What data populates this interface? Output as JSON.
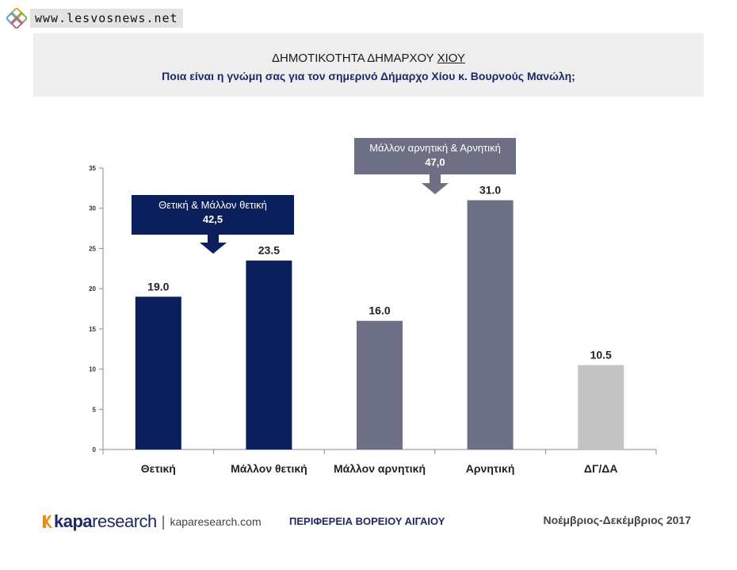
{
  "site": {
    "url": "www.lesvosnews.net"
  },
  "header": {
    "title_prefix": "ΔΗΜΟΤΙΚΟΤΗΤΑ ΔΗΜΑΡΧΟΥ",
    "title_place": "ΧΙΟΥ",
    "subtitle": "Ποια είναι η γνώμη σας για τον σημερινό Δήμαρχο Χίου κ. Βουρνούς Μανώλη;"
  },
  "chart_data": {
    "type": "bar",
    "categories": [
      "Θετική",
      "Μάλλον θετική",
      "Μάλλον αρνητική",
      "Αρνητική",
      "ΔΓ/ΔΑ"
    ],
    "values": [
      19.0,
      23.5,
      16.0,
      31.0,
      10.5
    ],
    "value_labels": [
      "19.0",
      "23.5",
      "16.0",
      "31.0",
      "10.5"
    ],
    "bar_colors": [
      "#0b1f5c",
      "#0b1f5c",
      "#6d7085",
      "#6d7085",
      "#c3c3c3"
    ],
    "ylim": [
      0,
      35
    ],
    "yticks": [
      0,
      5,
      10,
      15,
      20,
      25,
      30,
      35
    ],
    "grid": false,
    "annotations": [
      {
        "text": "Θετική & Μάλλον θετική",
        "value": "42,5",
        "color": "#0b1f5c"
      },
      {
        "text": "Μάλλον αρνητική & Αρνητική",
        "value": "47,0",
        "color": "#6d7085"
      }
    ]
  },
  "footer": {
    "brand_bold": "kapa",
    "brand_light": "research",
    "brand_url": "kaparesearch.com",
    "region": "ΠΕΡΙΦΕΡΕΙΑ ΒΟΡΕΙΟΥ ΑΙΓΑΙΟΥ",
    "period": "Νοέμβριος-Δεκέμβριος 2017"
  }
}
